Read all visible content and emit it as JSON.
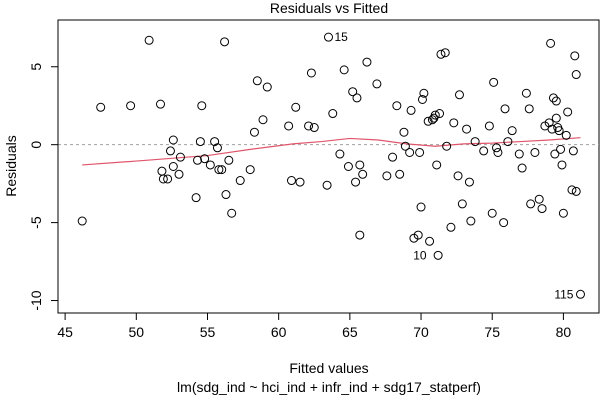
{
  "chart_data": {
    "type": "scatter",
    "title": "Residuals vs Fitted",
    "xlabel": "Fitted values",
    "xlabel_sub": "lm(sdg_ind ~ hci_ind + infr_ind + sdg17_statperf)",
    "ylabel": "Residuals",
    "xlim": [
      44.5,
      82.5
    ],
    "ylim": [
      -10.8,
      8.0
    ],
    "x_ticks": [
      45,
      50,
      55,
      60,
      65,
      70,
      75,
      80
    ],
    "y_ticks": [
      -10,
      -5,
      0,
      5
    ],
    "reference_line_y": 0,
    "colors": {
      "smooth": "#e0556b",
      "reference": "#a0a0a0",
      "points": "#000000"
    },
    "points": [
      {
        "x": 46.2,
        "y": -4.9
      },
      {
        "x": 47.5,
        "y": 2.4
      },
      {
        "x": 49.6,
        "y": 2.5
      },
      {
        "x": 50.9,
        "y": 6.7
      },
      {
        "x": 51.7,
        "y": 2.6
      },
      {
        "x": 51.8,
        "y": -1.7
      },
      {
        "x": 51.9,
        "y": -2.2
      },
      {
        "x": 52.2,
        "y": -2.2
      },
      {
        "x": 52.4,
        "y": -0.4
      },
      {
        "x": 52.6,
        "y": 0.3
      },
      {
        "x": 52.6,
        "y": -1.4
      },
      {
        "x": 53.0,
        "y": -1.9
      },
      {
        "x": 53.1,
        "y": -0.8
      },
      {
        "x": 54.2,
        "y": -3.4
      },
      {
        "x": 54.3,
        "y": -1.0
      },
      {
        "x": 54.5,
        "y": 0.2
      },
      {
        "x": 54.6,
        "y": 2.5
      },
      {
        "x": 54.8,
        "y": -0.9
      },
      {
        "x": 55.2,
        "y": -1.3
      },
      {
        "x": 55.5,
        "y": 0.2
      },
      {
        "x": 55.7,
        "y": -0.2
      },
      {
        "x": 55.8,
        "y": -1.6
      },
      {
        "x": 56.0,
        "y": -1.6
      },
      {
        "x": 56.2,
        "y": 6.6
      },
      {
        "x": 56.3,
        "y": -3.2
      },
      {
        "x": 56.5,
        "y": -1.0
      },
      {
        "x": 56.7,
        "y": -4.4
      },
      {
        "x": 57.3,
        "y": -2.3
      },
      {
        "x": 58.0,
        "y": -1.6
      },
      {
        "x": 58.3,
        "y": 0.8
      },
      {
        "x": 58.5,
        "y": 4.1
      },
      {
        "x": 58.9,
        "y": 1.6
      },
      {
        "x": 59.2,
        "y": 3.7
      },
      {
        "x": 60.7,
        "y": 1.2
      },
      {
        "x": 60.9,
        "y": -2.3
      },
      {
        "x": 61.2,
        "y": 2.4
      },
      {
        "x": 61.5,
        "y": -2.4
      },
      {
        "x": 62.1,
        "y": 1.2
      },
      {
        "x": 62.3,
        "y": 4.6
      },
      {
        "x": 62.5,
        "y": 1.1
      },
      {
        "x": 63.4,
        "y": -2.6
      },
      {
        "x": 63.5,
        "y": 6.9,
        "label": "15"
      },
      {
        "x": 63.8,
        "y": 2.0
      },
      {
        "x": 64.3,
        "y": -0.6
      },
      {
        "x": 64.6,
        "y": 4.8
      },
      {
        "x": 64.9,
        "y": -1.4
      },
      {
        "x": 65.2,
        "y": 3.4
      },
      {
        "x": 65.4,
        "y": -2.4
      },
      {
        "x": 65.5,
        "y": 3.0
      },
      {
        "x": 65.7,
        "y": -1.3
      },
      {
        "x": 65.7,
        "y": -5.8
      },
      {
        "x": 65.9,
        "y": -1.9
      },
      {
        "x": 66.2,
        "y": 5.3
      },
      {
        "x": 66.9,
        "y": 3.9
      },
      {
        "x": 67.6,
        "y": -2.0
      },
      {
        "x": 68.0,
        "y": -0.8
      },
      {
        "x": 68.3,
        "y": 2.5
      },
      {
        "x": 68.5,
        "y": -1.9
      },
      {
        "x": 68.8,
        "y": 0.8
      },
      {
        "x": 68.9,
        "y": -0.1
      },
      {
        "x": 69.2,
        "y": -0.5
      },
      {
        "x": 69.3,
        "y": 2.2
      },
      {
        "x": 69.5,
        "y": -6.0
      },
      {
        "x": 69.8,
        "y": -5.8
      },
      {
        "x": 69.9,
        "y": -0.5
      },
      {
        "x": 70.0,
        "y": -4.0
      },
      {
        "x": 70.1,
        "y": 2.9
      },
      {
        "x": 70.2,
        "y": 3.3
      },
      {
        "x": 70.5,
        "y": 1.5
      },
      {
        "x": 70.6,
        "y": -6.2,
        "label": "10"
      },
      {
        "x": 70.8,
        "y": 1.6
      },
      {
        "x": 70.9,
        "y": 1.7
      },
      {
        "x": 71.0,
        "y": 1.9
      },
      {
        "x": 71.1,
        "y": -1.3
      },
      {
        "x": 71.2,
        "y": -7.1
      },
      {
        "x": 71.3,
        "y": 2.0
      },
      {
        "x": 71.4,
        "y": 5.8
      },
      {
        "x": 71.7,
        "y": 5.9
      },
      {
        "x": 71.8,
        "y": -0.1
      },
      {
        "x": 72.1,
        "y": -5.3
      },
      {
        "x": 72.3,
        "y": 1.4
      },
      {
        "x": 72.6,
        "y": -2.0
      },
      {
        "x": 72.7,
        "y": 3.2
      },
      {
        "x": 72.9,
        "y": -3.8
      },
      {
        "x": 73.2,
        "y": 1.0
      },
      {
        "x": 73.4,
        "y": -2.4
      },
      {
        "x": 73.5,
        "y": -4.9
      },
      {
        "x": 73.8,
        "y": 0.2
      },
      {
        "x": 74.4,
        "y": -0.4
      },
      {
        "x": 74.8,
        "y": 1.2
      },
      {
        "x": 75.0,
        "y": -4.4
      },
      {
        "x": 75.1,
        "y": 4.0
      },
      {
        "x": 75.3,
        "y": -0.2
      },
      {
        "x": 75.4,
        "y": -0.5
      },
      {
        "x": 75.8,
        "y": -5.0
      },
      {
        "x": 75.9,
        "y": 2.3
      },
      {
        "x": 76.1,
        "y": 0.2
      },
      {
        "x": 76.4,
        "y": 0.9
      },
      {
        "x": 76.9,
        "y": -0.6
      },
      {
        "x": 77.1,
        "y": -1.5
      },
      {
        "x": 77.4,
        "y": 3.3
      },
      {
        "x": 77.6,
        "y": 2.3
      },
      {
        "x": 77.7,
        "y": -3.8
      },
      {
        "x": 78.0,
        "y": -0.5
      },
      {
        "x": 78.3,
        "y": -3.5
      },
      {
        "x": 78.5,
        "y": -4.1
      },
      {
        "x": 78.7,
        "y": 1.2
      },
      {
        "x": 79.0,
        "y": 1.4
      },
      {
        "x": 79.1,
        "y": 6.5
      },
      {
        "x": 79.2,
        "y": 1.0
      },
      {
        "x": 79.3,
        "y": 3.0
      },
      {
        "x": 79.4,
        "y": -0.6
      },
      {
        "x": 79.5,
        "y": 2.8
      },
      {
        "x": 79.5,
        "y": 1.7
      },
      {
        "x": 79.6,
        "y": 1.1
      },
      {
        "x": 79.7,
        "y": 0.9
      },
      {
        "x": 79.8,
        "y": -0.3
      },
      {
        "x": 79.9,
        "y": -1.3
      },
      {
        "x": 80.0,
        "y": -4.4
      },
      {
        "x": 80.2,
        "y": 0.6
      },
      {
        "x": 80.3,
        "y": 2.1
      },
      {
        "x": 80.6,
        "y": -2.9
      },
      {
        "x": 80.8,
        "y": 5.7
      },
      {
        "x": 80.9,
        "y": 4.5
      },
      {
        "x": 80.9,
        "y": -3.0
      },
      {
        "x": 80.7,
        "y": -0.4
      },
      {
        "x": 81.2,
        "y": -9.6,
        "label": "115"
      }
    ],
    "smooth_line": {
      "x": [
        46.2,
        50,
        55,
        58,
        61,
        63,
        65,
        67,
        69,
        71,
        73,
        75,
        77,
        79,
        81.2
      ],
      "y": [
        -1.3,
        -1.05,
        -0.7,
        -0.3,
        0.05,
        0.2,
        0.4,
        0.3,
        0.05,
        -0.1,
        0.05,
        0.1,
        0.2,
        0.3,
        0.45
      ]
    }
  }
}
